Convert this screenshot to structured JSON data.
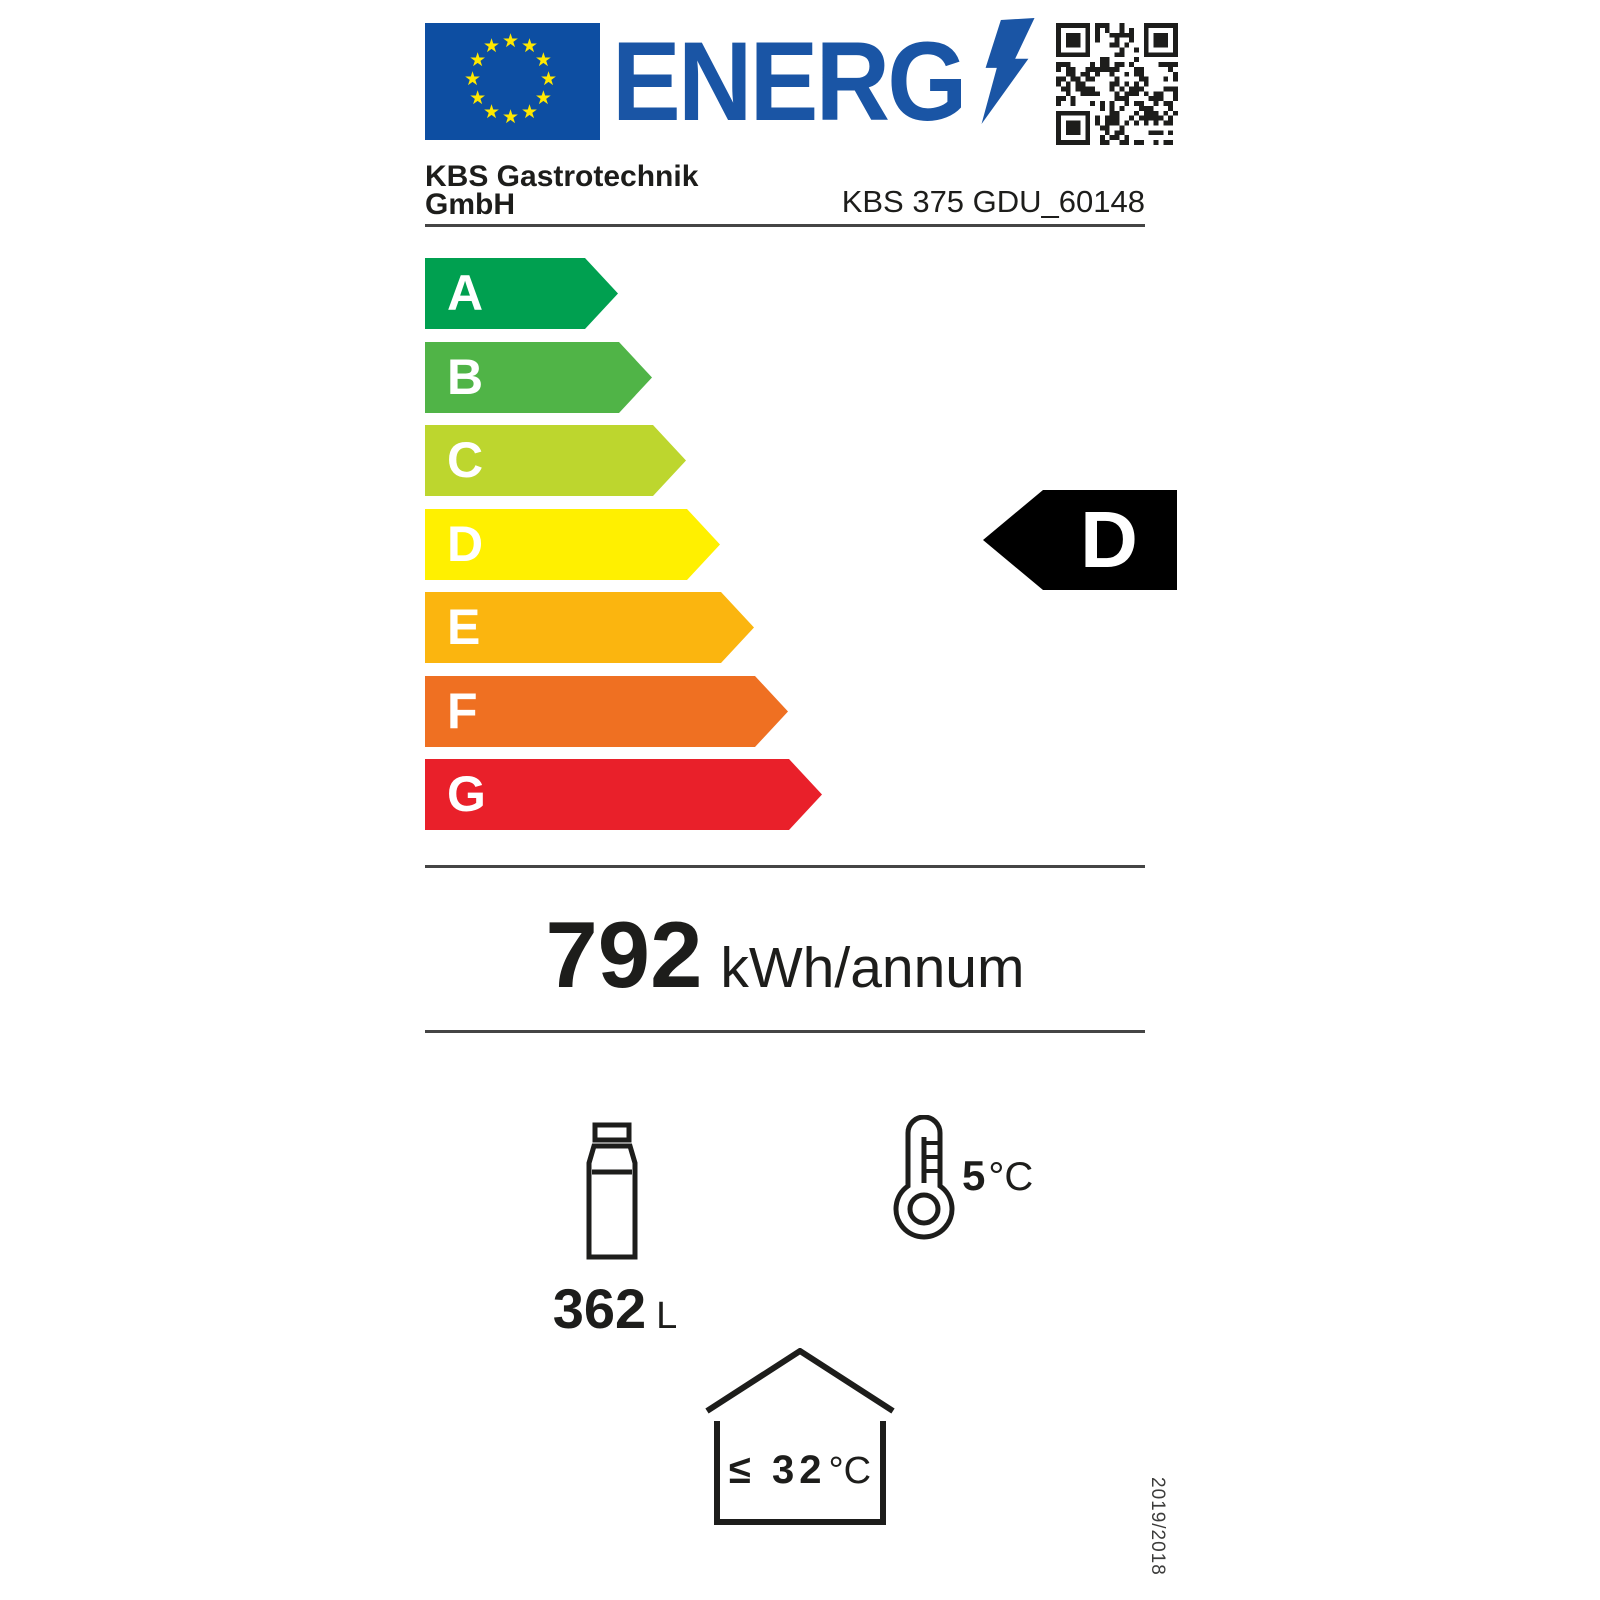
{
  "brand": {
    "logo_text": "ENERG",
    "logo_color": "#1A55A5",
    "flag_blue": "#0D4EA2",
    "star_yellow": "#FFE800"
  },
  "supplier": {
    "line1": "KBS Gastrotechnik",
    "line2": "GmbH"
  },
  "model": "KBS 375 GDU_60148",
  "efficiency_scale": [
    {
      "grade": "A",
      "color": "#00A050"
    },
    {
      "grade": "B",
      "color": "#50B447"
    },
    {
      "grade": "C",
      "color": "#BDD62E"
    },
    {
      "grade": "D",
      "color": "#FFF000"
    },
    {
      "grade": "E",
      "color": "#FBB50F"
    },
    {
      "grade": "F",
      "color": "#EF7022"
    },
    {
      "grade": "G",
      "color": "#E9202A"
    }
  ],
  "rating": {
    "grade": "D",
    "arrow_color": "#000000"
  },
  "energy_consumption": {
    "value": "792",
    "unit": "kWh/annum"
  },
  "storage_volume": {
    "value": "362",
    "unit": "L"
  },
  "compartment_temperature": {
    "value": "5",
    "unit": "°C"
  },
  "ambient_temperature": {
    "value": "≤ 32",
    "unit": "°C"
  },
  "regulation": "2019/2018"
}
